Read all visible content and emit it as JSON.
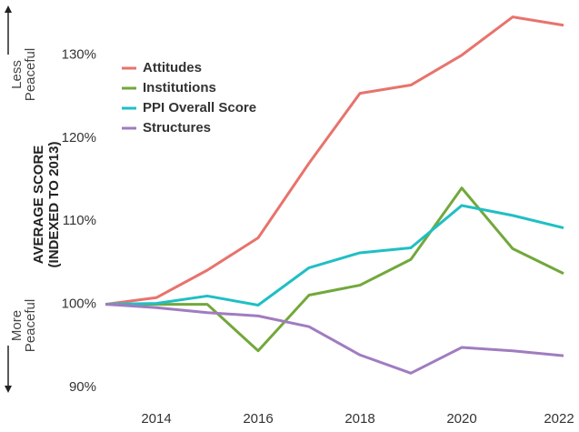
{
  "chart_data": {
    "type": "line",
    "ylabel": [
      "AVERAGE SCORE",
      "(INDEXED TO 2013)"
    ],
    "annotations": [
      [
        "Less",
        "Peaceful"
      ],
      [
        "More",
        "Peaceful"
      ]
    ],
    "x": [
      2013,
      2014,
      2015,
      2016,
      2017,
      2018,
      2019,
      2020,
      2021,
      2022
    ],
    "series": [
      {
        "name": "Attitudes",
        "color": "#e8736c",
        "values": [
          100,
          100.8,
          104.1,
          108,
          117,
          125.4,
          126.4,
          130,
          134.6,
          133.6
        ]
      },
      {
        "name": "Institutions",
        "color": "#72a83b",
        "values": [
          100,
          100,
          100,
          94.4,
          101.1,
          102.3,
          105.4,
          114,
          106.7,
          103.7
        ]
      },
      {
        "name": "PPI Overall Score",
        "color": "#1fbfc4",
        "values": [
          100,
          100.1,
          101,
          99.9,
          104.4,
          106.2,
          106.8,
          111.9,
          110.7,
          109.2
        ]
      },
      {
        "name": "Structures",
        "color": "#a07cc0",
        "values": [
          100,
          99.6,
          99,
          98.6,
          97.3,
          93.9,
          91.7,
          94.8,
          94.4,
          93.8
        ]
      }
    ],
    "xlim": [
      2013,
      2022
    ],
    "xticks": [
      2014,
      2016,
      2018,
      2020,
      2022
    ],
    "ylim": [
      89,
      135
    ],
    "yticks": [
      {
        "value": 90,
        "label": "90%"
      },
      {
        "value": 100,
        "label": "100%"
      },
      {
        "value": 110,
        "label": "110%"
      },
      {
        "value": 120,
        "label": "120%"
      },
      {
        "value": 130,
        "label": "130%"
      }
    ],
    "legend": "upper left",
    "grid": false
  }
}
